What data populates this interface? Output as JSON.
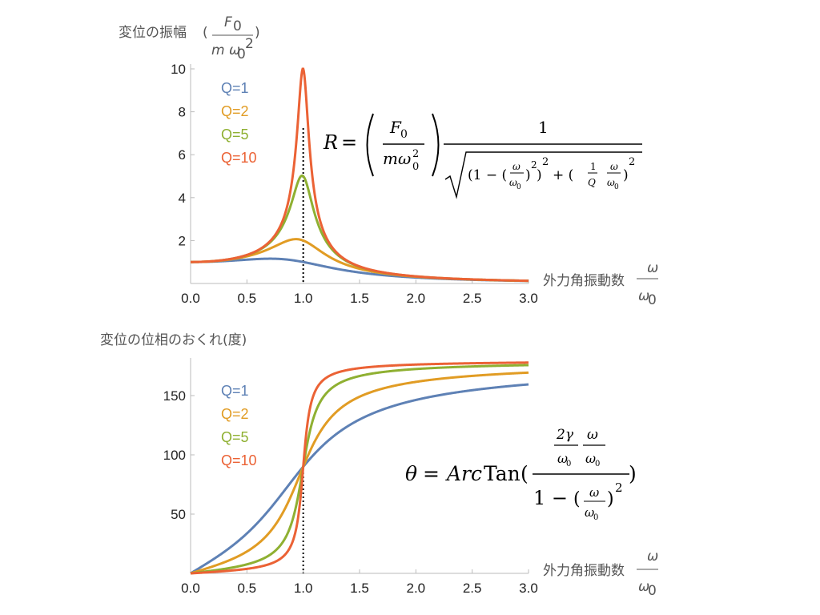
{
  "chart_data": [
    {
      "type": "line",
      "ylabel": "変位の振幅",
      "ylabel_unit": {
        "open": "(",
        "numerator": "F",
        "numerator_sub": "0",
        "denominator": "m ω",
        "denominator_sub": "0",
        "denominator_sup": "2",
        "close": ")"
      },
      "xlabel": "外力角振動数",
      "xlabel_unit": {
        "numerator": "ω",
        "denominator": "ω",
        "denominator_sub": "0"
      },
      "xlim": [
        0,
        3.0
      ],
      "ylim": [
        0,
        10
      ],
      "x_ticks": [
        "0.0",
        "0.5",
        "1.0",
        "1.5",
        "2.0",
        "2.5",
        "3.0"
      ],
      "y_ticks": [
        "2",
        "4",
        "6",
        "8",
        "10"
      ],
      "y_tick_values": [
        2,
        4,
        6,
        8,
        10
      ],
      "reference_line": {
        "x": 1.0,
        "style": "dotted"
      },
      "legend_placement": "top-left",
      "grid": false,
      "series": [
        {
          "name": "Q=1",
          "Q": 1,
          "color": "#5e81b5"
        },
        {
          "name": "Q=2",
          "Q": 2,
          "color": "#e19c24"
        },
        {
          "name": "Q=5",
          "Q": 5,
          "color": "#8fb032"
        },
        {
          "name": "Q=10",
          "Q": 10,
          "color": "#eb6235"
        }
      ],
      "formula": {
        "lhs": "R",
        "frac_num": "F",
        "frac_num_sub": "0",
        "frac_den": "mω",
        "frac_den_sub": "0",
        "frac_den_sup": "2",
        "one": "1"
      }
    },
    {
      "type": "line",
      "ylabel": "変位の位相のおくれ(度)",
      "xlabel": "外力角振動数",
      "xlabel_unit": {
        "numerator": "ω",
        "denominator": "ω",
        "denominator_sub": "0"
      },
      "xlim": [
        0,
        3.0
      ],
      "ylim": [
        0,
        180
      ],
      "x_ticks": [
        "0.0",
        "0.5",
        "1.0",
        "1.5",
        "2.0",
        "2.5",
        "3.0"
      ],
      "y_ticks": [
        "50",
        "100",
        "150"
      ],
      "y_tick_values": [
        50,
        100,
        150
      ],
      "reference_line": {
        "x": 1.0,
        "style": "dotted"
      },
      "legend_placement": "top-left",
      "grid": false,
      "series": [
        {
          "name": "Q=1",
          "Q": 1,
          "color": "#5e81b5"
        },
        {
          "name": "Q=2",
          "Q": 2,
          "color": "#e19c24"
        },
        {
          "name": "Q=5",
          "Q": 5,
          "color": "#8fb032"
        },
        {
          "name": "Q=10",
          "Q": 10,
          "color": "#eb6235"
        }
      ],
      "formula": {
        "lhs": "θ",
        "eq": "=",
        "func_italic": "Arc",
        "func_roman": "Tan",
        "num_a": "2γ",
        "num_b": "ω",
        "sub": "0",
        "one_minus": "1 −",
        "sup": "2"
      }
    }
  ]
}
